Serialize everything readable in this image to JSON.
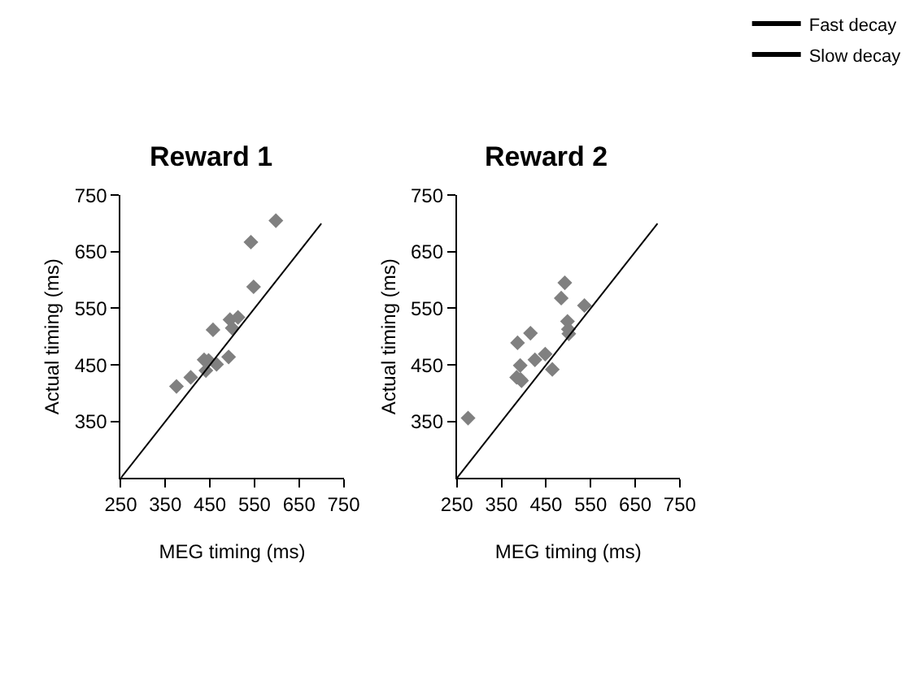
{
  "chart_data": [
    {
      "type": "scatter",
      "title": "Reward 1",
      "xlabel": "MEG timing (ms)",
      "ylabel": "Actual timing (ms)",
      "xlim": [
        250,
        750
      ],
      "ylim": [
        250,
        750
      ],
      "xticks": [
        250,
        350,
        450,
        550,
        650,
        750
      ],
      "yticks": [
        350,
        450,
        550,
        650,
        750
      ],
      "marker": "diamond",
      "legend": false,
      "series": [
        {
          "x": [
            375,
            407,
            437,
            441,
            447,
            457,
            465,
            492,
            495,
            500,
            513,
            542,
            548,
            598
          ],
          "values": [
            412,
            428,
            459,
            440,
            458,
            512,
            451,
            464,
            530,
            515,
            534,
            667,
            588,
            705
          ],
          "color": "#808080",
          "errors": [
            8,
            8,
            8,
            8,
            8,
            8,
            8,
            8,
            8,
            8,
            8,
            8,
            8,
            8
          ]
        },
        {
          "type": "line",
          "marker": "none",
          "x": [
            250,
            700
          ],
          "values": [
            250,
            700
          ],
          "color": "#000000"
        }
      ]
    },
    {
      "type": "scatter",
      "title": "Reward 2",
      "xlabel": "MEG timing (ms)",
      "ylabel": "Actual timing (ms)",
      "xlim": [
        250,
        750
      ],
      "ylim": [
        250,
        750
      ],
      "xticks": [
        250,
        350,
        450,
        550,
        650,
        750
      ],
      "yticks": [
        350,
        450,
        550,
        650,
        750
      ],
      "marker": "diamond",
      "legend": "top right",
      "series": [
        {
          "x": [
            275,
            386,
            384,
            393,
            395,
            392,
            415,
            425,
            448,
            464,
            484,
            492,
            498,
            500,
            501,
            536
          ],
          "values": [
            356,
            489,
            428,
            424,
            422,
            449,
            506,
            459,
            469,
            442,
            568,
            595,
            527,
            513,
            505,
            555
          ],
          "color": "#808080",
          "errors": [
            8,
            8,
            8,
            8,
            8,
            8,
            8,
            8,
            8,
            8,
            8,
            8,
            8,
            8,
            8,
            8
          ]
        },
        {
          "type": "line",
          "marker": "none",
          "x": [
            250,
            700
          ],
          "values": [
            250,
            700
          ],
          "color": "#000000"
        },
        {
          "type": "line",
          "marker": "none",
          "name": "Fast decay",
          "color": "#000000"
        },
        {
          "type": "line",
          "marker": "none",
          "name": "Slow decay",
          "color": "#000000"
        }
      ]
    }
  ]
}
